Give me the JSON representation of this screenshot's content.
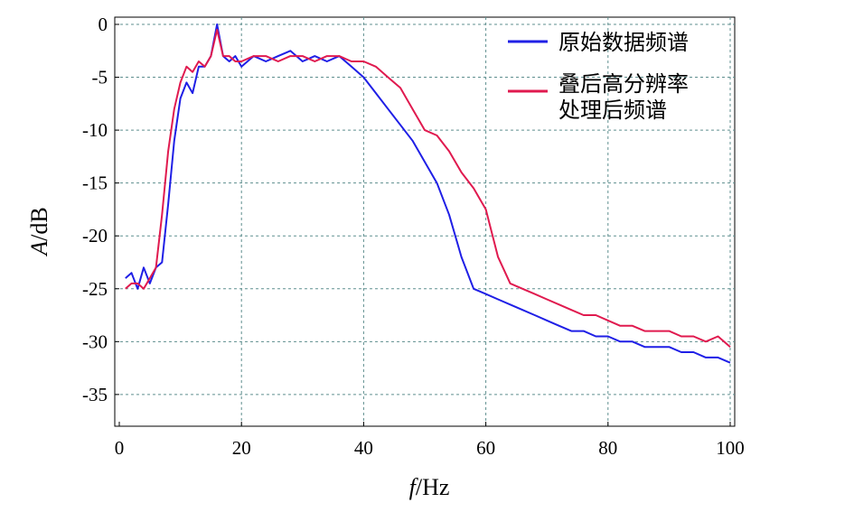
{
  "chart_data": {
    "type": "line",
    "xlabel_italic": "f",
    "xlabel_unit": "/Hz",
    "ylabel_italic": "A",
    "ylabel_unit": "/dB",
    "xlim": [
      0,
      100
    ],
    "ylim": [
      -38,
      0
    ],
    "xticks": [
      "0",
      "20",
      "40",
      "60",
      "80",
      "100"
    ],
    "yticks": [
      "0",
      "-5",
      "-10",
      "-15",
      "-20",
      "-25",
      "-30",
      "-35"
    ],
    "grid": true,
    "legend_position": "top-right",
    "series": [
      {
        "name": "原始数据频谱",
        "color": "#1f1fe6",
        "x": [
          1,
          2,
          3,
          4,
          5,
          6,
          7,
          8,
          9,
          10,
          11,
          12,
          13,
          14,
          15,
          16,
          17,
          18,
          19,
          20,
          22,
          24,
          26,
          28,
          30,
          32,
          34,
          36,
          38,
          40,
          42,
          44,
          46,
          48,
          50,
          52,
          54,
          56,
          58,
          60,
          62,
          64,
          66,
          68,
          70,
          72,
          74,
          76,
          78,
          80,
          82,
          84,
          86,
          88,
          90,
          92,
          94,
          96,
          98,
          100
        ],
        "y": [
          -24,
          -23.5,
          -25,
          -23,
          -24.5,
          -23,
          -22.5,
          -17,
          -11,
          -7,
          -5.5,
          -6.5,
          -4,
          -4,
          -3,
          0,
          -3,
          -3.5,
          -3,
          -4,
          -3,
          -3.5,
          -3,
          -2.5,
          -3.5,
          -3,
          -3.5,
          -3,
          -4,
          -5,
          -6.5,
          -8,
          -9.5,
          -11,
          -13,
          -15,
          -18,
          -22,
          -25,
          -25.5,
          -26,
          -26.5,
          -27,
          -27.5,
          -28,
          -28.5,
          -29,
          -29,
          -29.5,
          -29.5,
          -30,
          -30,
          -30.5,
          -30.5,
          -30.5,
          -31,
          -31,
          -31.5,
          -31.5,
          -32
        ]
      },
      {
        "name": "叠后高分辨率处理后频谱",
        "color": "#e01a4f",
        "x": [
          1,
          2,
          3,
          4,
          5,
          6,
          7,
          8,
          9,
          10,
          11,
          12,
          13,
          14,
          15,
          16,
          17,
          18,
          19,
          20,
          22,
          24,
          26,
          28,
          30,
          32,
          34,
          36,
          38,
          40,
          42,
          44,
          46,
          48,
          50,
          52,
          54,
          56,
          58,
          60,
          62,
          64,
          66,
          68,
          70,
          72,
          74,
          76,
          78,
          80,
          82,
          84,
          86,
          88,
          90,
          92,
          94,
          96,
          98,
          100
        ],
        "y": [
          -25,
          -24.5,
          -24.5,
          -25,
          -24,
          -23,
          -18,
          -12,
          -8,
          -5.5,
          -4,
          -4.5,
          -3.5,
          -4,
          -3,
          -0.5,
          -3,
          -3,
          -3.5,
          -3.5,
          -3,
          -3,
          -3.5,
          -3,
          -3,
          -3.5,
          -3,
          -3,
          -3.5,
          -3.5,
          -4,
          -5,
          -6,
          -8,
          -10,
          -10.5,
          -12,
          -14,
          -15.5,
          -17.5,
          -22,
          -24.5,
          -25,
          -25.5,
          -26,
          -26.5,
          -27,
          -27.5,
          -27.5,
          -28,
          -28.5,
          -28.5,
          -29,
          -29,
          -29,
          -29.5,
          -29.5,
          -30,
          -29.5,
          -30.5
        ]
      }
    ]
  }
}
